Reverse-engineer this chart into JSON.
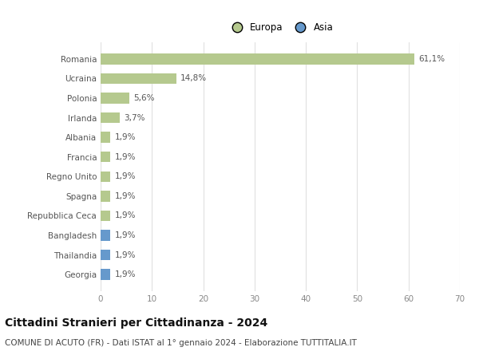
{
  "categories": [
    "Romania",
    "Ucraina",
    "Polonia",
    "Irlanda",
    "Albania",
    "Francia",
    "Regno Unito",
    "Spagna",
    "Repubblica Ceca",
    "Bangladesh",
    "Thailandia",
    "Georgia"
  ],
  "values": [
    61.1,
    14.8,
    5.6,
    3.7,
    1.9,
    1.9,
    1.9,
    1.9,
    1.9,
    1.9,
    1.9,
    1.9
  ],
  "labels": [
    "61,1%",
    "14,8%",
    "5,6%",
    "3,7%",
    "1,9%",
    "1,9%",
    "1,9%",
    "1,9%",
    "1,9%",
    "1,9%",
    "1,9%",
    "1,9%"
  ],
  "colors": [
    "#b5c98e",
    "#b5c98e",
    "#b5c98e",
    "#b5c98e",
    "#b5c98e",
    "#b5c98e",
    "#b5c98e",
    "#b5c98e",
    "#b5c98e",
    "#6699cc",
    "#6699cc",
    "#6699cc"
  ],
  "legend": [
    {
      "label": "Europa",
      "color": "#b5c98e"
    },
    {
      "label": "Asia",
      "color": "#6699cc"
    }
  ],
  "xlim": [
    0,
    70
  ],
  "xticks": [
    0,
    10,
    20,
    30,
    40,
    50,
    60,
    70
  ],
  "title": "Cittadini Stranieri per Cittadinanza - 2024",
  "subtitle": "COMUNE DI ACUTO (FR) - Dati ISTAT al 1° gennaio 2024 - Elaborazione TUTTITALIA.IT",
  "background_color": "#ffffff",
  "grid_color": "#e0e0e0",
  "bar_height": 0.55,
  "title_fontsize": 10,
  "subtitle_fontsize": 7.5,
  "label_fontsize": 7.5,
  "tick_fontsize": 7.5,
  "legend_fontsize": 8.5
}
